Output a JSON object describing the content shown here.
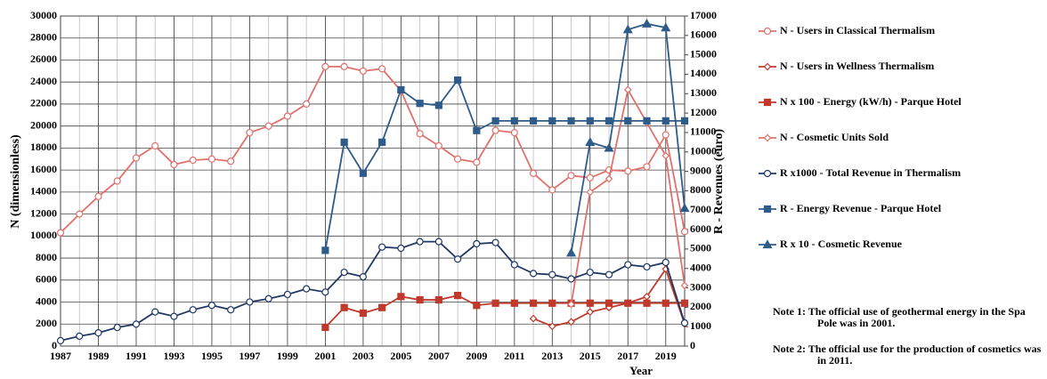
{
  "chart_data": {
    "type": "line",
    "x": [
      1987,
      1988,
      1989,
      1990,
      1991,
      1992,
      1993,
      1994,
      1995,
      1996,
      1997,
      1998,
      1999,
      2000,
      2001,
      2002,
      2003,
      2004,
      2005,
      2006,
      2007,
      2008,
      2009,
      2010,
      2011,
      2012,
      2013,
      2014,
      2015,
      2016,
      2017,
      2018,
      2019,
      2020
    ],
    "xlim": [
      1987,
      2020
    ],
    "xticks": [
      1987,
      1989,
      1991,
      1993,
      1995,
      1997,
      1999,
      2001,
      2003,
      2005,
      2007,
      2009,
      2011,
      2013,
      2015,
      2017,
      2019
    ],
    "ylim": [
      0,
      30000
    ],
    "yticks": [
      0,
      2000,
      4000,
      6000,
      8000,
      10000,
      12000,
      14000,
      16000,
      18000,
      20000,
      22000,
      24000,
      26000,
      28000,
      30000
    ],
    "y2lim": [
      0,
      17000
    ],
    "y2ticks": [
      0,
      1000,
      2000,
      3000,
      4000,
      5000,
      6000,
      7000,
      8000,
      9000,
      10000,
      11000,
      12000,
      13000,
      14000,
      15000,
      16000,
      17000
    ],
    "ylabel": "N (dimensionless)",
    "y2label": "R - Revenues  (euro)",
    "xlabel": "Year",
    "grid": true,
    "series": [
      {
        "name": "N - Users in Classical Thermalism",
        "color": "#e0706c",
        "marker": "circle",
        "axis": "y",
        "values": [
          10300,
          12000,
          13600,
          15000,
          17100,
          18200,
          16500,
          16900,
          17000,
          16800,
          19400,
          20000,
          20900,
          22000,
          25400,
          25400,
          25000,
          25200,
          23200,
          19300,
          18200,
          17000,
          16700,
          19600,
          19400,
          15700,
          14200,
          15500,
          15300,
          16000,
          15900,
          16300,
          19200,
          10400
        ]
      },
      {
        "name": "N - Users in Wellness Thermalism",
        "color": "#c0392b",
        "marker": "diamond",
        "axis": "y",
        "values": [
          null,
          null,
          null,
          null,
          null,
          null,
          null,
          null,
          null,
          null,
          null,
          null,
          null,
          null,
          null,
          null,
          null,
          null,
          null,
          null,
          null,
          null,
          null,
          null,
          null,
          2500,
          1800,
          2200,
          3100,
          3500,
          3900,
          4500,
          7000,
          2000
        ]
      },
      {
        "name": "N x 100 - Energy (kW/h) - Parque Hotel",
        "color": "#c0392b",
        "marker": "square",
        "axis": "y",
        "values": [
          null,
          null,
          null,
          null,
          null,
          null,
          null,
          null,
          null,
          null,
          null,
          null,
          null,
          null,
          1700,
          3500,
          3000,
          3500,
          4500,
          4200,
          4200,
          4600,
          3700,
          3900,
          3900,
          3900,
          3900,
          3900,
          3900,
          3900,
          3900,
          3900,
          3900,
          3900
        ]
      },
      {
        "name": "N - Cosmetic Units Sold",
        "color": "#e0706c",
        "marker": "diamond",
        "axis": "y",
        "values": [
          null,
          null,
          null,
          null,
          null,
          null,
          null,
          null,
          null,
          null,
          null,
          null,
          null,
          null,
          null,
          null,
          null,
          null,
          null,
          null,
          null,
          null,
          null,
          null,
          null,
          null,
          null,
          3800,
          14000,
          15200,
          23300,
          20300,
          17300,
          5500
        ]
      },
      {
        "name": "R x1000 - Total Revenue in Thermalism",
        "color": "#1f3864",
        "marker": "circle",
        "axis": "y2",
        "values": [
          280,
          510,
          680,
          960,
          1130,
          1760,
          1530,
          1870,
          2100,
          1870,
          2270,
          2440,
          2660,
          2950,
          2780,
          3800,
          3570,
          5100,
          5040,
          5380,
          5380,
          4480,
          5270,
          5330,
          4190,
          3740,
          3680,
          3460,
          3800,
          3680,
          4190,
          4080,
          4310,
          1190
        ]
      },
      {
        "name": "R - Energy Revenue - Parque Hotel",
        "color": "#2e5c8a",
        "marker": "square",
        "axis": "y2",
        "values": [
          null,
          null,
          null,
          null,
          null,
          null,
          null,
          null,
          null,
          null,
          null,
          null,
          null,
          null,
          4930,
          10500,
          8900,
          10500,
          13200,
          12500,
          12400,
          13700,
          11100,
          11600,
          11600,
          11600,
          11600,
          11600,
          11600,
          11600,
          11600,
          11600,
          11600,
          11600
        ]
      },
      {
        "name": "R x 10 - Cosmetic Revenue",
        "color": "#2e5c8a",
        "marker": "triangle",
        "axis": "y2",
        "values": [
          null,
          null,
          null,
          null,
          null,
          null,
          null,
          null,
          null,
          null,
          null,
          null,
          null,
          null,
          null,
          null,
          null,
          null,
          null,
          null,
          null,
          null,
          null,
          null,
          null,
          null,
          null,
          4800,
          10500,
          10200,
          16300,
          16600,
          16400,
          7100
        ]
      }
    ],
    "annotations": [
      "Note 1: The official use of geothermal energy in the Spa Pole was in 2001.",
      "Note 2: The official use for the production of cosmetics was in 2011."
    ]
  }
}
